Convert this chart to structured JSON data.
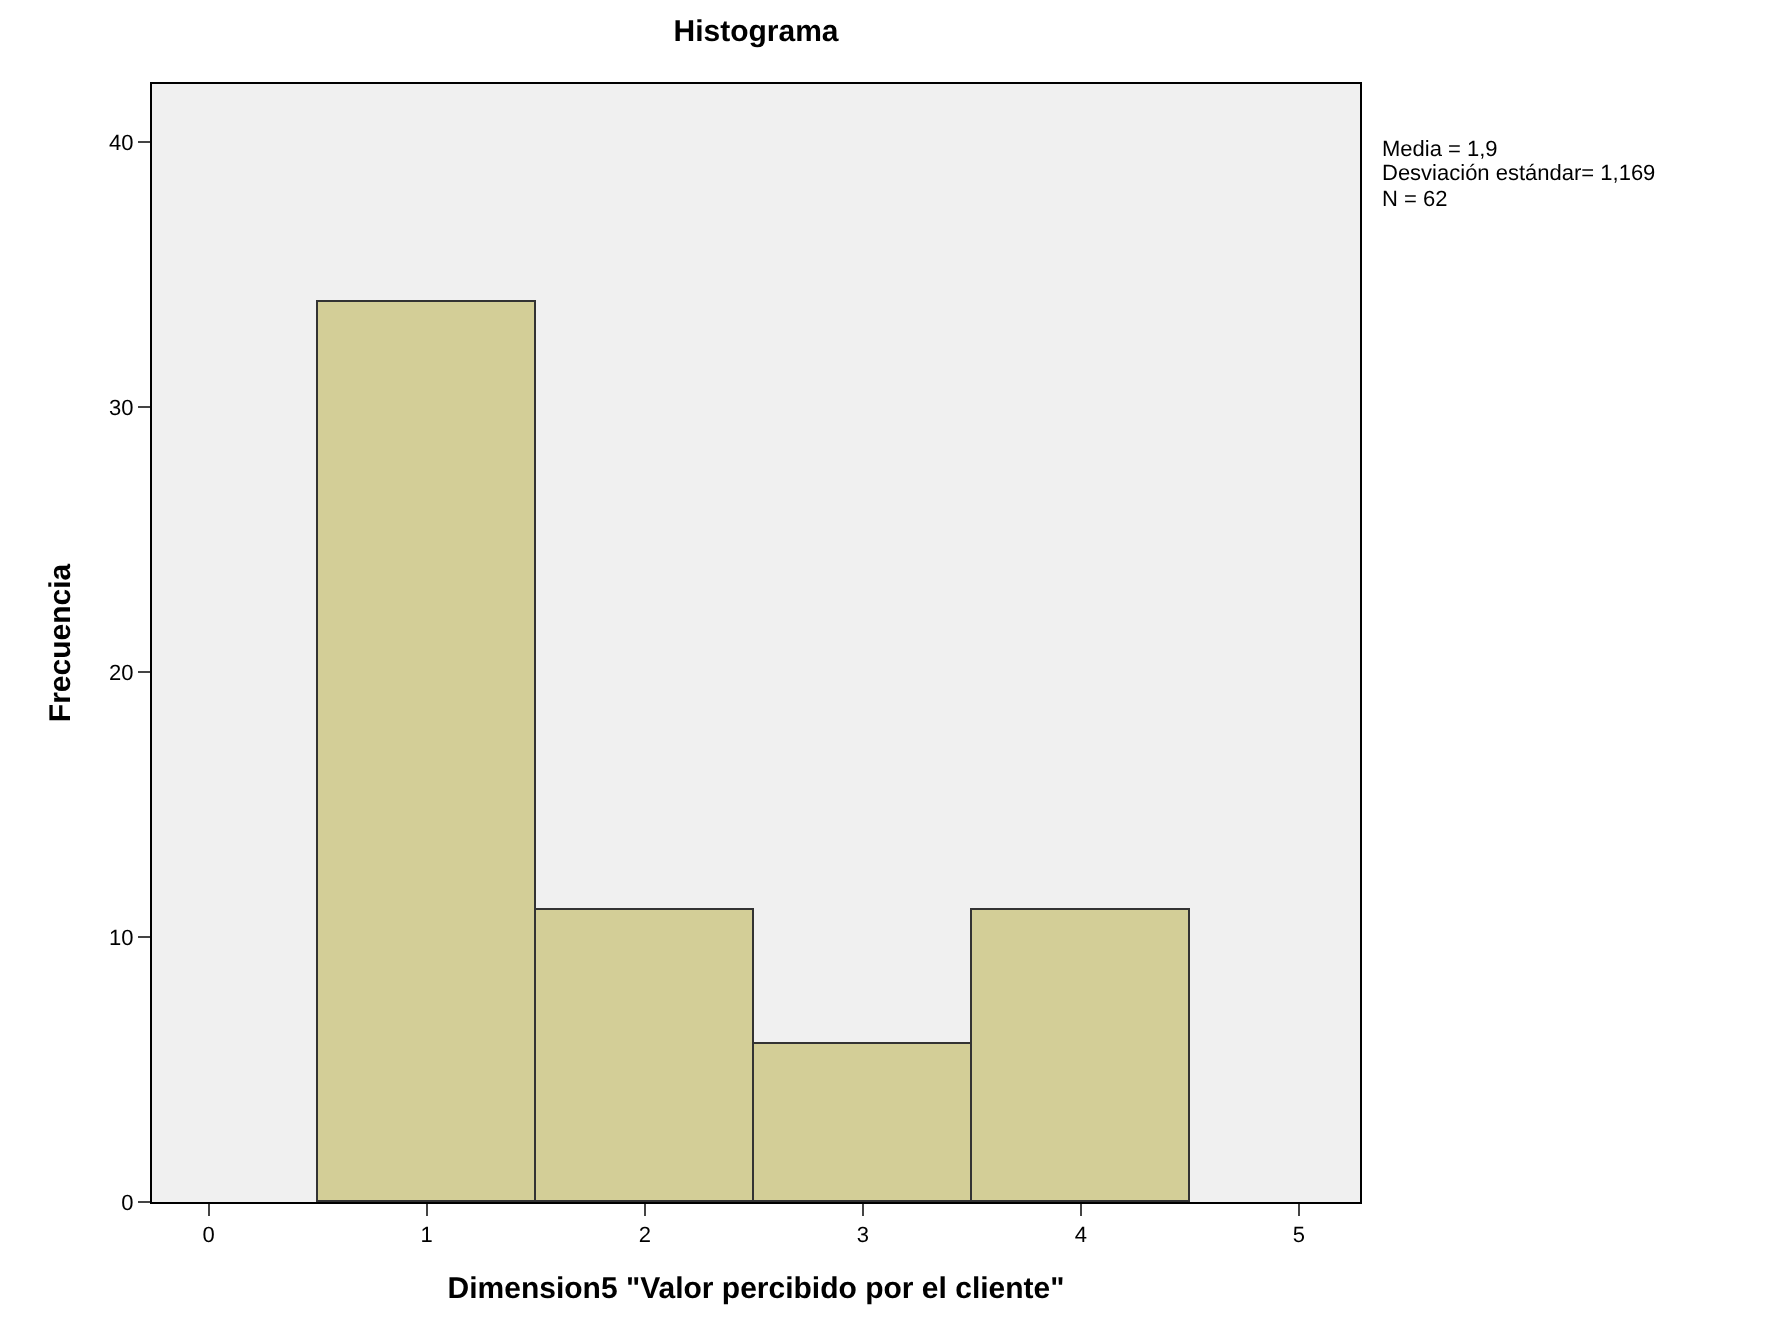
{
  "chart_data": {
    "type": "histogram",
    "title": "Histograma",
    "xlabel": "Dimension5 \"Valor percibido por el cliente\"",
    "ylabel": "Frecuencia",
    "bins": [
      0.5,
      1.5,
      2.5,
      3.5,
      4.5
    ],
    "values": [
      34,
      11,
      6,
      11
    ],
    "color": "#d3ce97",
    "xlim": [
      -0.26,
      5.28
    ],
    "xticks": [
      0,
      1,
      2,
      3,
      4,
      5
    ],
    "ylim": [
      0,
      42.2
    ],
    "yticks": [
      0,
      10,
      20,
      30,
      40
    ],
    "grid": false,
    "annotations": [
      "Media = 1,9",
      "Desviación estándar= 1,169",
      "N = 62"
    ]
  }
}
